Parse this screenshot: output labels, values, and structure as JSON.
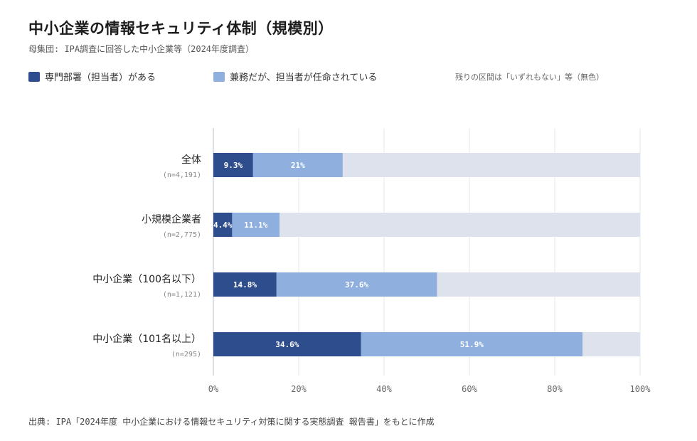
{
  "header": {
    "title": "中小企業の情報セキュリティ体制（規模別）",
    "subtitle": "母集団: IPA調査に回答した中小企業等（2024年度調査）"
  },
  "legend": {
    "dedicated": "専門部署（担当者）がある",
    "concurrent": "兼務だが、担当者が任命されている",
    "note": "残りの区間は「いずれもない」等（無色）"
  },
  "colors": {
    "dedicated": "#2e4d8c",
    "concurrent": "#8fb0de",
    "remainder": "#dde2ec",
    "grid": "#e4e7ee",
    "axis": "#b8bec9"
  },
  "chart_data": {
    "type": "bar",
    "orientation": "horizontal",
    "stacked": true,
    "categories": [
      "全体",
      "小規模企業者",
      "中小企業（100名以下）",
      "中小企業（101名以上）"
    ],
    "sample_sizes": [
      "(n=4,191)",
      "(n=2,775)",
      "(n=1,121)",
      "(n=295)"
    ],
    "series": [
      {
        "name": "専門部署（担当者）がある",
        "values": [
          9.3,
          4.4,
          14.8,
          34.6
        ],
        "labels": [
          "9.3%",
          "4.4%",
          "14.8%",
          "34.6%"
        ]
      },
      {
        "name": "兼務だが、担当者が任命されている",
        "values": [
          21,
          11.1,
          37.6,
          51.9
        ],
        "labels": [
          "21%",
          "11.1%",
          "37.6%",
          "51.9%"
        ]
      }
    ],
    "xlim": [
      0,
      100
    ],
    "xticks": [
      "0%",
      "20%",
      "40%",
      "60%",
      "80%",
      "100%"
    ],
    "grid": true,
    "legend_position": "top-left"
  },
  "footer": {
    "source": "出典: IPA「2024年度 中小企業における情報セキュリティ対策に関する実態調査 報告書」をもとに作成"
  }
}
